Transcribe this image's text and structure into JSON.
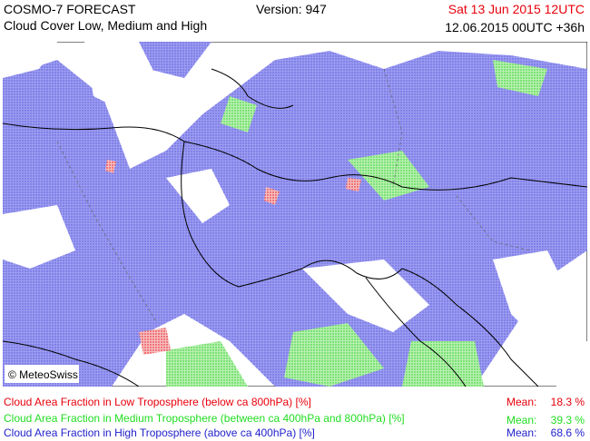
{
  "header": {
    "title": "COSMO-7 FORECAST",
    "subtitle": "Cloud Cover Low, Medium and High",
    "version": "Version: 947",
    "valid_time": "Sat 13 Jun 2015 12UTC",
    "run": "12.06.2015 00UTC +36h"
  },
  "map": {
    "copyright": "© MeteoSwiss"
  },
  "legend": [
    {
      "label": "Cloud Area Fraction in Low Troposphere (below ca 800hPa) [%]",
      "mean_label": "Mean:",
      "mean": "18.3 %",
      "color": "#e8000b"
    },
    {
      "label": "Cloud Area Fraction in Medium Troposphere (between ca 400hPa and 800hPa) [%]",
      "mean_label": "Mean:",
      "mean": "39.3 %",
      "color": "#22dd22"
    },
    {
      "label": "Cloud Area Fraction in High Troposphere (above ca 400hPa) [%]",
      "mean_label": "Mean:",
      "mean": "68.6 %",
      "color": "#2222cc"
    }
  ]
}
